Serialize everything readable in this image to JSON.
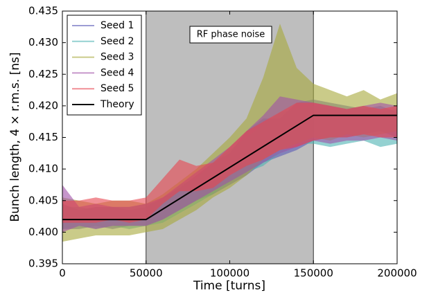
{
  "chart_data": {
    "type": "band",
    "xlabel": "Time [turns]",
    "ylabel": "Bunch length, 4 × r.m.s. [ns]",
    "annotation": "RF phase noise",
    "shaded_xrange": [
      50000,
      150000
    ],
    "shade_color": "#bebebe",
    "xlim": [
      0,
      200000
    ],
    "xticks": [
      0,
      50000,
      100000,
      150000,
      200000
    ],
    "ylim": [
      0.395,
      0.435
    ],
    "yticks": [
      0.395,
      {
        "value": 0.4,
        "label": "0.400"
      },
      0.405,
      {
        "value": 0.41,
        "label": "0.410"
      },
      0.415,
      {
        "value": 0.42,
        "label": "0.420"
      },
      0.425,
      {
        "value": 0.43,
        "label": "0.430"
      },
      0.435
    ],
    "x": [
      0,
      10000,
      20000,
      30000,
      40000,
      50000,
      60000,
      70000,
      80000,
      90000,
      100000,
      110000,
      120000,
      130000,
      140000,
      150000,
      160000,
      170000,
      180000,
      190000,
      200000
    ],
    "series": [
      {
        "name": "Seed 1",
        "color": "#5a5ab8",
        "lower": [
          0.4005,
          0.4005,
          0.401,
          0.4005,
          0.401,
          0.401,
          0.402,
          0.4035,
          0.405,
          0.406,
          0.4075,
          0.409,
          0.411,
          0.412,
          0.413,
          0.4145,
          0.415,
          0.415,
          0.4155,
          0.416,
          0.415
        ],
        "upper": [
          0.4045,
          0.4035,
          0.404,
          0.404,
          0.4035,
          0.404,
          0.4055,
          0.407,
          0.409,
          0.411,
          0.4125,
          0.416,
          0.418,
          0.418,
          0.4205,
          0.421,
          0.4205,
          0.42,
          0.4195,
          0.42,
          0.419
        ]
      },
      {
        "name": "Seed 2",
        "color": "#4db3b3",
        "lower": [
          0.4005,
          0.401,
          0.4005,
          0.401,
          0.4005,
          0.401,
          0.4015,
          0.403,
          0.4045,
          0.406,
          0.408,
          0.4095,
          0.4105,
          0.4125,
          0.414,
          0.414,
          0.4135,
          0.414,
          0.4145,
          0.4135,
          0.414
        ],
        "upper": [
          0.404,
          0.404,
          0.4035,
          0.404,
          0.404,
          0.4045,
          0.405,
          0.4075,
          0.4085,
          0.411,
          0.413,
          0.415,
          0.417,
          0.419,
          0.4195,
          0.42,
          0.4195,
          0.4195,
          0.42,
          0.419,
          0.4195
        ]
      },
      {
        "name": "Seed 3",
        "color": "#a7a83a",
        "lower": [
          0.3985,
          0.399,
          0.3995,
          0.3995,
          0.3995,
          0.4,
          0.4005,
          0.402,
          0.4035,
          0.4055,
          0.407,
          0.409,
          0.4115,
          0.413,
          0.414,
          0.415,
          0.4145,
          0.4155,
          0.415,
          0.4155,
          0.416
        ],
        "upper": [
          0.4055,
          0.405,
          0.4045,
          0.405,
          0.405,
          0.4045,
          0.406,
          0.408,
          0.41,
          0.4125,
          0.415,
          0.418,
          0.4245,
          0.433,
          0.426,
          0.4235,
          0.4225,
          0.4215,
          0.4225,
          0.421,
          0.422
        ]
      },
      {
        "name": "Seed 4",
        "color": "#a050a8",
        "lower": [
          0.4,
          0.401,
          0.4005,
          0.401,
          0.401,
          0.401,
          0.402,
          0.4035,
          0.405,
          0.4065,
          0.408,
          0.4095,
          0.411,
          0.4125,
          0.4135,
          0.4145,
          0.414,
          0.4145,
          0.4145,
          0.415,
          0.4145
        ],
        "upper": [
          0.4075,
          0.404,
          0.4045,
          0.404,
          0.404,
          0.4045,
          0.4055,
          0.4075,
          0.4095,
          0.4115,
          0.4135,
          0.416,
          0.4185,
          0.4215,
          0.421,
          0.4205,
          0.42,
          0.4195,
          0.42,
          0.4205,
          0.42
        ]
      },
      {
        "name": "Seed 5",
        "color": "#e8454f",
        "lower": [
          0.4015,
          0.4015,
          0.4015,
          0.402,
          0.4015,
          0.402,
          0.4045,
          0.4065,
          0.4065,
          0.407,
          0.409,
          0.4105,
          0.4115,
          0.413,
          0.4135,
          0.4145,
          0.415,
          0.415,
          0.4155,
          0.415,
          0.415
        ],
        "upper": [
          0.405,
          0.405,
          0.4055,
          0.405,
          0.405,
          0.4055,
          0.4085,
          0.4115,
          0.4105,
          0.411,
          0.4135,
          0.416,
          0.4175,
          0.419,
          0.4205,
          0.4205,
          0.42,
          0.4195,
          0.42,
          0.4195,
          0.42
        ]
      }
    ],
    "theory": {
      "name": "Theory",
      "color": "#000000",
      "x": [
        0,
        50000,
        150000,
        200000
      ],
      "values": [
        0.402,
        0.402,
        0.4185,
        0.4185
      ]
    }
  }
}
